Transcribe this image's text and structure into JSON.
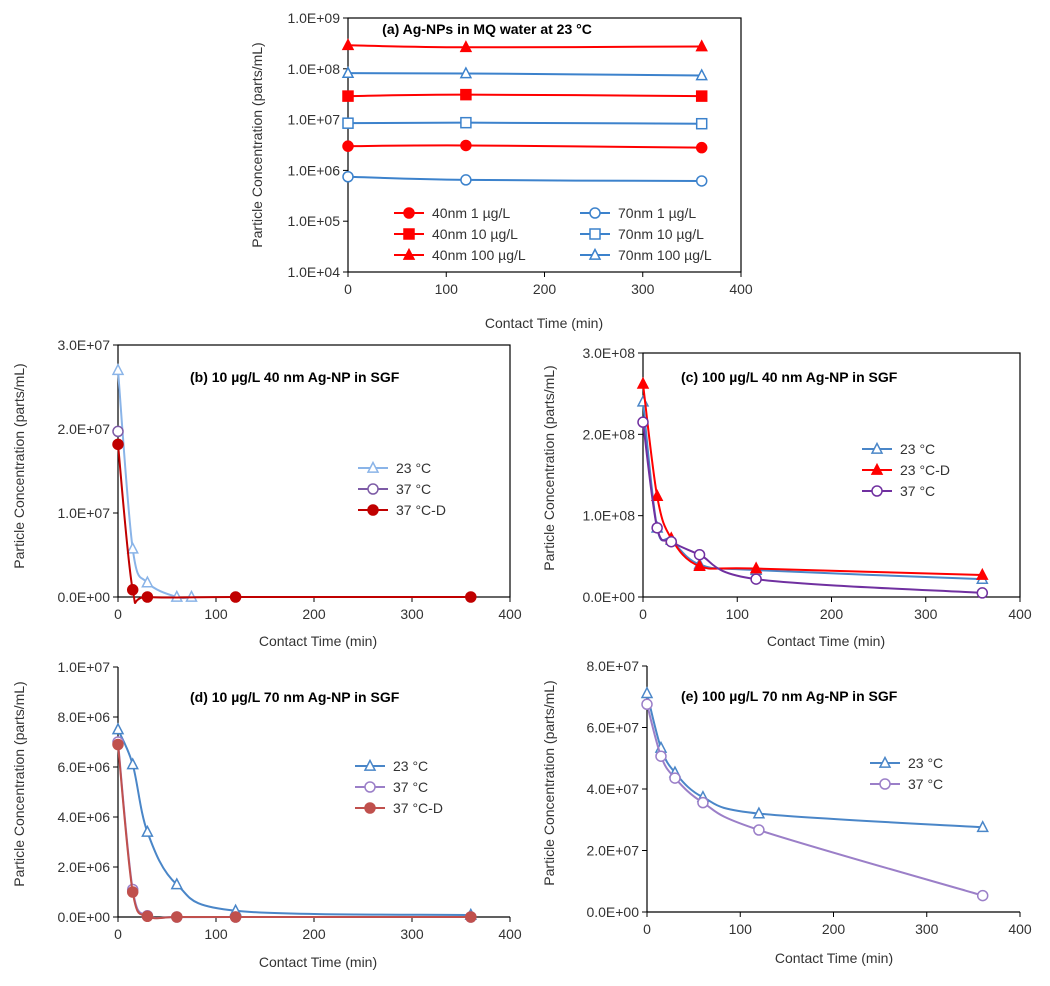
{
  "chart_data": [
    {
      "id": "a",
      "type": "line",
      "title": "(a) Ag-NPs in MQ water at 23 °C",
      "xlabel": "Contact Time (min)",
      "ylabel": "Particle Concentration (parts/mL)",
      "xlim": [
        0,
        400
      ],
      "ylim": [
        10000,
        1000000000
      ],
      "yscale": "log",
      "xticks": [
        "0",
        "100",
        "200",
        "300",
        "400"
      ],
      "yticks": [
        "1.0E+04",
        "1.0E+05",
        "1.0E+06",
        "1.0E+07",
        "1.0E+08",
        "1.0E+09"
      ],
      "grid": false,
      "legend": "lower-center",
      "x": [
        0,
        120,
        360
      ],
      "series": [
        {
          "name": "40nm 1 µg/L",
          "color": "#ff0000",
          "marker": "circle",
          "filled": true,
          "values": [
            3000000,
            3100000,
            2800000
          ]
        },
        {
          "name": "70nm 1 µg/L",
          "color": "#3c82cc",
          "marker": "circle",
          "filled": false,
          "values": [
            750000,
            650000,
            620000
          ]
        },
        {
          "name": "40nm 10 µg/L",
          "color": "#ff0000",
          "marker": "square",
          "filled": true,
          "values": [
            29000000,
            31000000,
            29000000
          ]
        },
        {
          "name": "70nm 10 µg/L",
          "color": "#3c82cc",
          "marker": "square",
          "filled": false,
          "values": [
            8500000,
            8700000,
            8300000
          ]
        },
        {
          "name": "40nm 100 µg/L",
          "color": "#ff0000",
          "marker": "triangle",
          "filled": true,
          "values": [
            290000000,
            265000000,
            275000000
          ]
        },
        {
          "name": "70nm 100 µg/L",
          "color": "#3c82cc",
          "marker": "triangle",
          "filled": false,
          "values": [
            82000000,
            81000000,
            74000000
          ]
        }
      ]
    },
    {
      "id": "b",
      "type": "line",
      "title": "(b) 10 µg/L 40 nm Ag-NP in SGF",
      "xlabel": "Contact Time (min)",
      "ylabel": "Particle Concentration (parts/mL)",
      "xlim": [
        0,
        400
      ],
      "ylim": [
        0,
        35000000
      ],
      "xticks": [
        "0",
        "100",
        "200",
        "300",
        "400"
      ],
      "yticks": [
        "0.0E+00",
        "1.0E+07",
        "2.0E+07",
        "3.0E+07"
      ],
      "grid": false,
      "legend": "right",
      "series": [
        {
          "name": "23 °C",
          "color": "#8ab4e8",
          "marker": "triangle",
          "filled": false,
          "x": [
            0,
            15,
            30,
            60,
            75
          ],
          "values": [
            31500000,
            6700000,
            2000000,
            0,
            0
          ]
        },
        {
          "name": "37 °C",
          "color": "#7d5ba6",
          "marker": "circle",
          "filled": false,
          "x": [
            0
          ],
          "values": [
            23000000
          ]
        },
        {
          "name": "37 °C-D",
          "color": "#c00000",
          "marker": "circle",
          "filled": true,
          "x": [
            0,
            15,
            30,
            120,
            360
          ],
          "values": [
            21200000,
            1000000,
            0,
            0,
            0
          ]
        }
      ]
    },
    {
      "id": "c",
      "type": "line",
      "title": "(c) 100 µg/L 40 nm Ag-NP in SGF",
      "xlabel": "Contact Time (min)",
      "ylabel": "Particle Concentration (parts/mL)",
      "xlim": [
        0,
        400
      ],
      "ylim": [
        0,
        300000000
      ],
      "xticks": [
        "0",
        "100",
        "200",
        "300",
        "400"
      ],
      "yticks": [
        "0.0E+00",
        "1.0E+08",
        "2.0E+08",
        "3.0E+08"
      ],
      "grid": false,
      "legend": "right",
      "x": [
        0,
        15,
        30,
        60,
        120,
        360
      ],
      "series": [
        {
          "name": "23 °C",
          "color": "#4a86c8",
          "marker": "triangle",
          "filled": false,
          "values": [
            240000000,
            85000000,
            70000000,
            40000000,
            33000000,
            22000000
          ]
        },
        {
          "name": "23 °C-D",
          "color": "#ff0000",
          "marker": "triangle",
          "filled": true,
          "values": [
            262000000,
            124000000,
            72000000,
            38000000,
            35000000,
            27000000
          ]
        },
        {
          "name": "37 °C",
          "color": "#7030a0",
          "marker": "circle",
          "filled": false,
          "values": [
            215000000,
            85000000,
            68000000,
            52000000,
            22000000,
            5000000
          ]
        }
      ]
    },
    {
      "id": "d",
      "type": "line",
      "title": "(d) 10 µg/L 70 nm Ag-NP in SGF",
      "xlabel": "Contact Time (min)",
      "ylabel": "Particle Concentration (parts/mL)",
      "xlim": [
        0,
        400
      ],
      "ylim": [
        0,
        10000000
      ],
      "xticks": [
        "0",
        "100",
        "200",
        "300",
        "400"
      ],
      "yticks": [
        "0.0E+00",
        "2.0E+06",
        "4.0E+06",
        "6.0E+06",
        "8.0E+06",
        "1.0E+07"
      ],
      "grid": false,
      "legend": "right",
      "series": [
        {
          "name": "23 °C",
          "color": "#4a86c8",
          "marker": "triangle",
          "filled": false,
          "x": [
            0,
            15,
            30,
            60,
            120,
            360
          ],
          "values": [
            7500000,
            6100000,
            3400000,
            1300000,
            250000,
            80000
          ]
        },
        {
          "name": "37 °C",
          "color": "#9b7fc8",
          "marker": "circle",
          "filled": false,
          "x": [
            0,
            15,
            30,
            60,
            120,
            360
          ],
          "values": [
            7000000,
            1100000,
            50000,
            0,
            0,
            0
          ]
        },
        {
          "name": "37 °C-D",
          "color": "#c0504d",
          "marker": "circle",
          "filled": true,
          "x": [
            0,
            15,
            30,
            60,
            120,
            360
          ],
          "values": [
            6900000,
            1000000,
            30000,
            0,
            0,
            0
          ]
        }
      ]
    },
    {
      "id": "e",
      "type": "line",
      "title": "(e) 100 µg/L 70 nm Ag-NP in SGF",
      "xlabel": "Contact Time (min)",
      "ylabel": "Particle Concentration (parts/mL)",
      "xlim": [
        0,
        400
      ],
      "ylim": [
        0,
        90000000
      ],
      "xticks": [
        "0",
        "100",
        "200",
        "300",
        "400"
      ],
      "yticks": [
        "0.0E+00",
        "2.0E+07",
        "4.0E+07",
        "6.0E+07",
        "8.0E+07"
      ],
      "grid": false,
      "legend": "right",
      "x": [
        0,
        15,
        30,
        60,
        120,
        360
      ],
      "series": [
        {
          "name": "23 °C",
          "color": "#4a86c8",
          "marker": "triangle",
          "filled": false,
          "values": [
            80000000,
            60000000,
            51000000,
            42000000,
            36000000,
            31000000
          ]
        },
        {
          "name": "37 °C",
          "color": "#9b7fc8",
          "marker": "circle",
          "filled": false,
          "values": [
            76000000,
            57000000,
            49000000,
            40000000,
            30000000,
            6000000
          ]
        }
      ]
    }
  ]
}
